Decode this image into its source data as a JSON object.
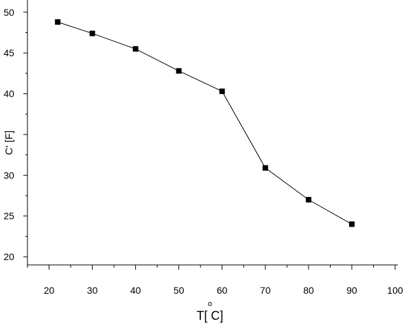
{
  "chart_data": {
    "type": "line",
    "title": "",
    "xlabel": "T[ C]",
    "xlabel_superscript": "o",
    "ylabel": "C‘ [F]",
    "xlim": [
      15,
      100
    ],
    "ylim": [
      19,
      51.5
    ],
    "x_ticks": [
      20,
      30,
      40,
      50,
      60,
      70,
      80,
      90,
      100
    ],
    "y_tick_labels": [
      "20",
      "25",
      "30",
      "40",
      "45",
      "50"
    ],
    "y_tick_label_values": [
      20,
      25,
      30,
      40,
      45,
      50
    ],
    "grid": false,
    "series": [
      {
        "x": [
          22,
          30,
          40,
          50,
          60,
          70,
          80,
          90
        ],
        "y": [
          48.8,
          47.4,
          45.5,
          42.8,
          40.3,
          30.9,
          27.0,
          24.0
        ],
        "marker": "square",
        "color": "#000000"
      }
    ]
  }
}
